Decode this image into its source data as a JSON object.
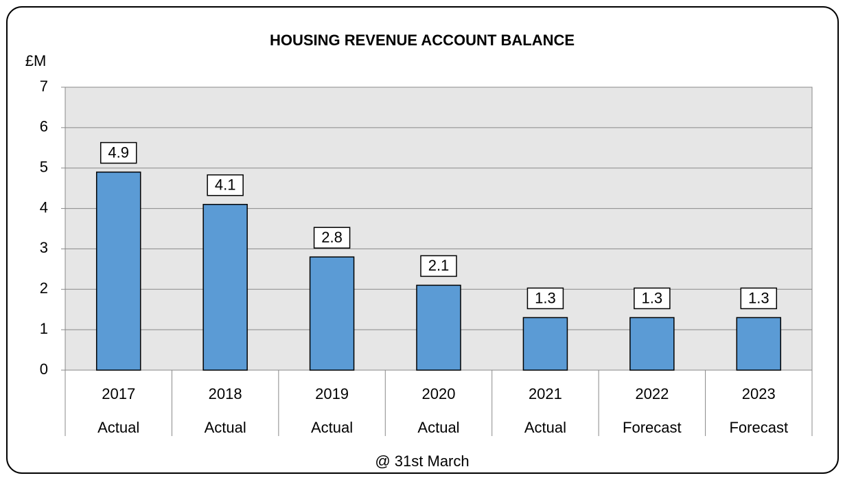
{
  "chart_data": {
    "type": "bar",
    "title": "HOUSING REVENUE ACCOUNT BALANCE",
    "y_label": "£M",
    "x_label": "@ 31st March",
    "categories": [
      "2017",
      "2018",
      "2019",
      "2020",
      "2021",
      "2022",
      "2023"
    ],
    "category_sublabels": [
      "Actual",
      "Actual",
      "Actual",
      "Actual",
      "Actual",
      "Forecast",
      "Forecast"
    ],
    "values": [
      4.9,
      4.1,
      2.8,
      2.1,
      1.3,
      1.3,
      1.3
    ],
    "color": "#5b9bd5",
    "ylim": [
      0,
      7
    ],
    "yticks": [
      0,
      1,
      2,
      3,
      4,
      5,
      6,
      7
    ],
    "grid": true
  }
}
